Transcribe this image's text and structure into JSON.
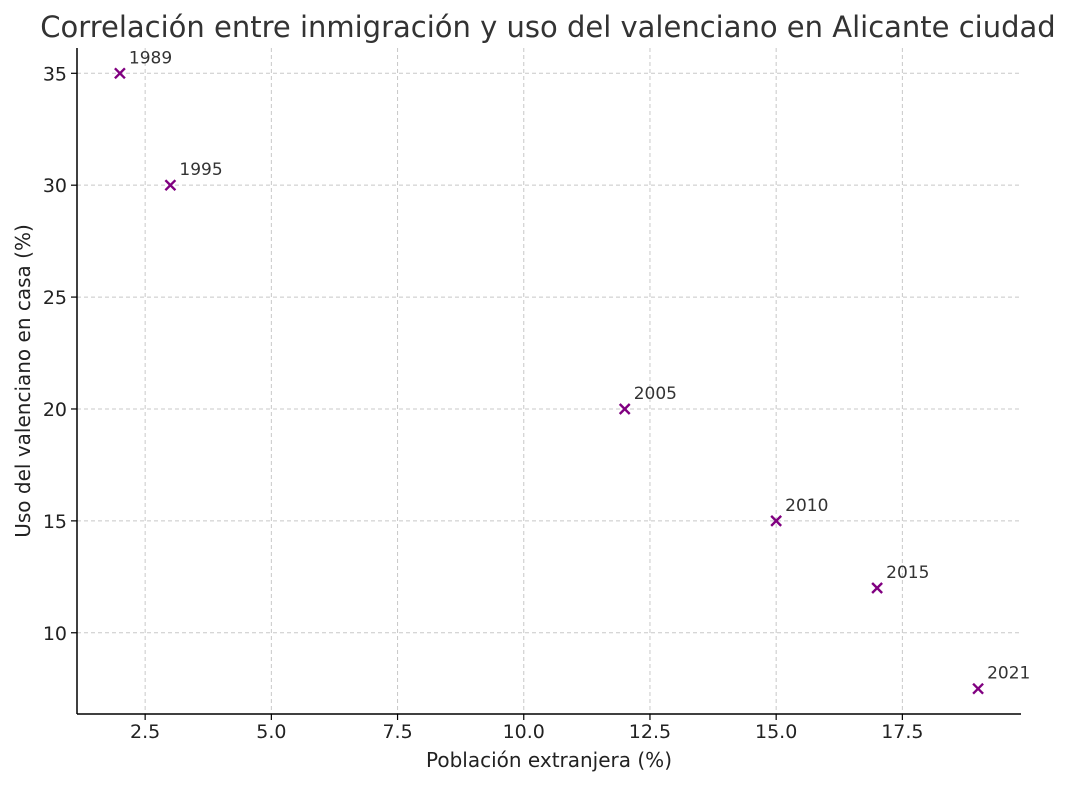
{
  "chart_data": {
    "type": "scatter",
    "title": "Correlación entre inmigración y uso del valenciano en Alicante ciudad",
    "xlabel": "Población extranjera (%)",
    "ylabel": "Uso del valenciano en casa (%)",
    "xlim": [
      1.15,
      19.85
    ],
    "ylim": [
      6.37,
      36.13
    ],
    "xticks": [
      2.5,
      5.0,
      7.5,
      10.0,
      12.5,
      15.0,
      17.5
    ],
    "xtick_labels": [
      "2.5",
      "5.0",
      "7.5",
      "10.0",
      "12.5",
      "15.0",
      "17.5"
    ],
    "yticks": [
      10,
      15,
      20,
      25,
      30,
      35
    ],
    "ytick_labels": [
      "10",
      "15",
      "20",
      "25",
      "30",
      "35"
    ],
    "grid": true,
    "marker": "x",
    "color": "#800080",
    "points": [
      {
        "label": "1989",
        "x": 2,
        "y": 35
      },
      {
        "label": "1995",
        "x": 3,
        "y": 30
      },
      {
        "label": "2005",
        "x": 12,
        "y": 20
      },
      {
        "label": "2010",
        "x": 15,
        "y": 15
      },
      {
        "label": "2015",
        "x": 17,
        "y": 12
      },
      {
        "label": "2021",
        "x": 19,
        "y": 7.5
      }
    ]
  }
}
